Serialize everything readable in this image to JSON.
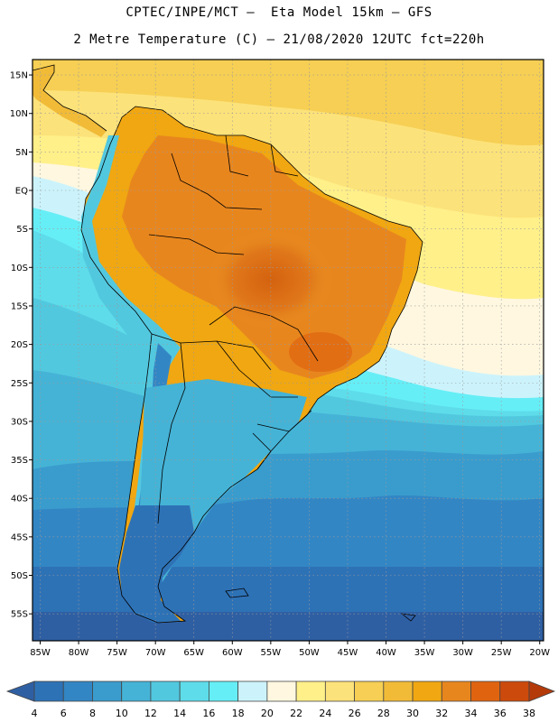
{
  "header": {
    "line1": "CPTEC/INPE/MCT –  Eta Model 15km – GFS",
    "line2": "2 Metre Temperature (C) – 21/08/2020 12UTC fct=220h"
  },
  "map": {
    "lon_range": [
      -86,
      -19.5
    ],
    "lat_range": [
      -58.5,
      17
    ],
    "lat_ticks": [
      15,
      10,
      5,
      0,
      -5,
      -10,
      -15,
      -20,
      -25,
      -30,
      -35,
      -40,
      -45,
      -50,
      -55
    ],
    "lat_labels": [
      "15N",
      "10N",
      "5N",
      "EQ",
      "5S",
      "10S",
      "15S",
      "20S",
      "25S",
      "30S",
      "35S",
      "40S",
      "45S",
      "50S",
      "55S"
    ],
    "lon_ticks": [
      -85,
      -80,
      -75,
      -70,
      -65,
      -60,
      -55,
      -50,
      -45,
      -40,
      -35,
      -30,
      -25,
      -20
    ],
    "lon_labels": [
      "85W",
      "80W",
      "75W",
      "70W",
      "65W",
      "60W",
      "55W",
      "50W",
      "45W",
      "40W",
      "35W",
      "30W",
      "25W",
      "20W"
    ]
  },
  "colorbar": {
    "labels": [
      "4",
      "6",
      "8",
      "10",
      "12",
      "14",
      "16",
      "18",
      "20",
      "22",
      "24",
      "26",
      "28",
      "30",
      "32",
      "34",
      "36",
      "38"
    ],
    "colors": [
      "#2f5fa3",
      "#2e72b6",
      "#3386c4",
      "#3a9ccd",
      "#45b3d6",
      "#52c8df",
      "#5edcea",
      "#66eef6",
      "#ccf3fb",
      "#fff7e0",
      "#fff08a",
      "#fce27a",
      "#f6cf54",
      "#f1bb38",
      "#f0a712",
      "#e8861e",
      "#e06410",
      "#cc4a0c",
      "#b43a0a"
    ]
  }
}
